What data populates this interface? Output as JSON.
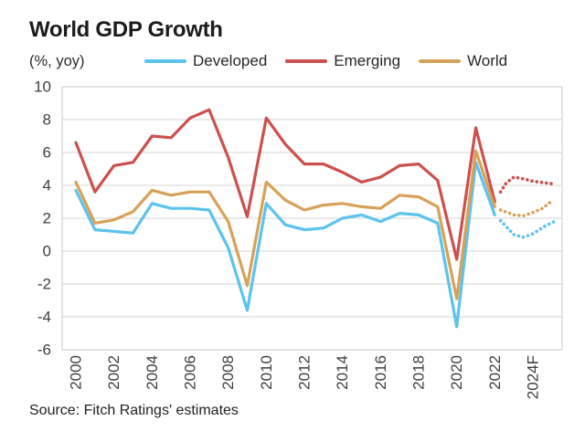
{
  "title": "World GDP Growth",
  "unit_label": "(%, yoy)",
  "source": "Source: Fitch Ratings' estimates",
  "legend": [
    {
      "label": "Developed",
      "color": "#5bc3ec"
    },
    {
      "label": "Emerging",
      "color": "#cb514d"
    },
    {
      "label": "World",
      "color": "#d8a159"
    }
  ],
  "chart_data": {
    "type": "line",
    "title": "World GDP Growth",
    "ylabel": "(%, yoy)",
    "xlabel": "",
    "ylim": [
      -6,
      10
    ],
    "grid": "horizontal",
    "legend_position": "top",
    "y_ticks": [
      10,
      8,
      6,
      4,
      2,
      0,
      -2,
      -4,
      -6
    ],
    "x_tick_years": [
      2000,
      2002,
      2004,
      2006,
      2008,
      2010,
      2012,
      2014,
      2016,
      2018,
      2020,
      2022,
      2024
    ],
    "x_tick_labels": [
      "2000",
      "2002",
      "2004",
      "2006",
      "2008",
      "2010",
      "2012",
      "2014",
      "2016",
      "2018",
      "2020",
      "2022",
      "2024F"
    ],
    "years": [
      2000,
      2001,
      2002,
      2003,
      2004,
      2005,
      2006,
      2007,
      2008,
      2009,
      2010,
      2011,
      2012,
      2013,
      2014,
      2015,
      2016,
      2017,
      2018,
      2019,
      2020,
      2021,
      2022
    ],
    "forecast_style": "dotted",
    "forecast_label": "2024F",
    "series": [
      {
        "name": "Developed",
        "color": "#5bc3ec",
        "values": [
          3.7,
          1.3,
          1.2,
          1.1,
          2.9,
          2.6,
          2.6,
          2.5,
          0.2,
          -3.6,
          2.9,
          1.6,
          1.3,
          1.4,
          2.0,
          2.2,
          1.8,
          2.3,
          2.2,
          1.7,
          -4.6,
          5.4,
          2.2
        ],
        "forecast": [
          [
            2022.3,
            1.85
          ],
          [
            2023,
            1.0
          ],
          [
            2023.5,
            0.85
          ],
          [
            2024,
            1.05
          ],
          [
            2024.6,
            1.5
          ],
          [
            2025.3,
            1.9
          ]
        ]
      },
      {
        "name": "Emerging",
        "color": "#cb514d",
        "values": [
          6.6,
          3.6,
          5.2,
          5.4,
          7.0,
          6.9,
          8.1,
          8.6,
          5.7,
          2.1,
          8.1,
          6.5,
          5.3,
          5.3,
          4.8,
          4.2,
          4.5,
          5.2,
          5.3,
          4.3,
          -0.5,
          7.5,
          3.0
        ],
        "forecast": [
          [
            2022.3,
            3.6
          ],
          [
            2022.6,
            4.15
          ],
          [
            2023,
            4.5
          ],
          [
            2023.5,
            4.4
          ],
          [
            2024,
            4.25
          ],
          [
            2025,
            4.1
          ]
        ]
      },
      {
        "name": "World",
        "color": "#d8a159",
        "values": [
          4.2,
          1.7,
          1.9,
          2.4,
          3.7,
          3.4,
          3.6,
          3.6,
          1.8,
          -2.1,
          4.2,
          3.1,
          2.5,
          2.8,
          2.9,
          2.7,
          2.6,
          3.4,
          3.3,
          2.7,
          -2.9,
          6.1,
          2.7
        ],
        "forecast": [
          [
            2022.3,
            2.5
          ],
          [
            2023,
            2.2
          ],
          [
            2023.5,
            2.15
          ],
          [
            2024,
            2.35
          ],
          [
            2024.5,
            2.6
          ],
          [
            2025,
            3.05
          ]
        ]
      }
    ]
  }
}
